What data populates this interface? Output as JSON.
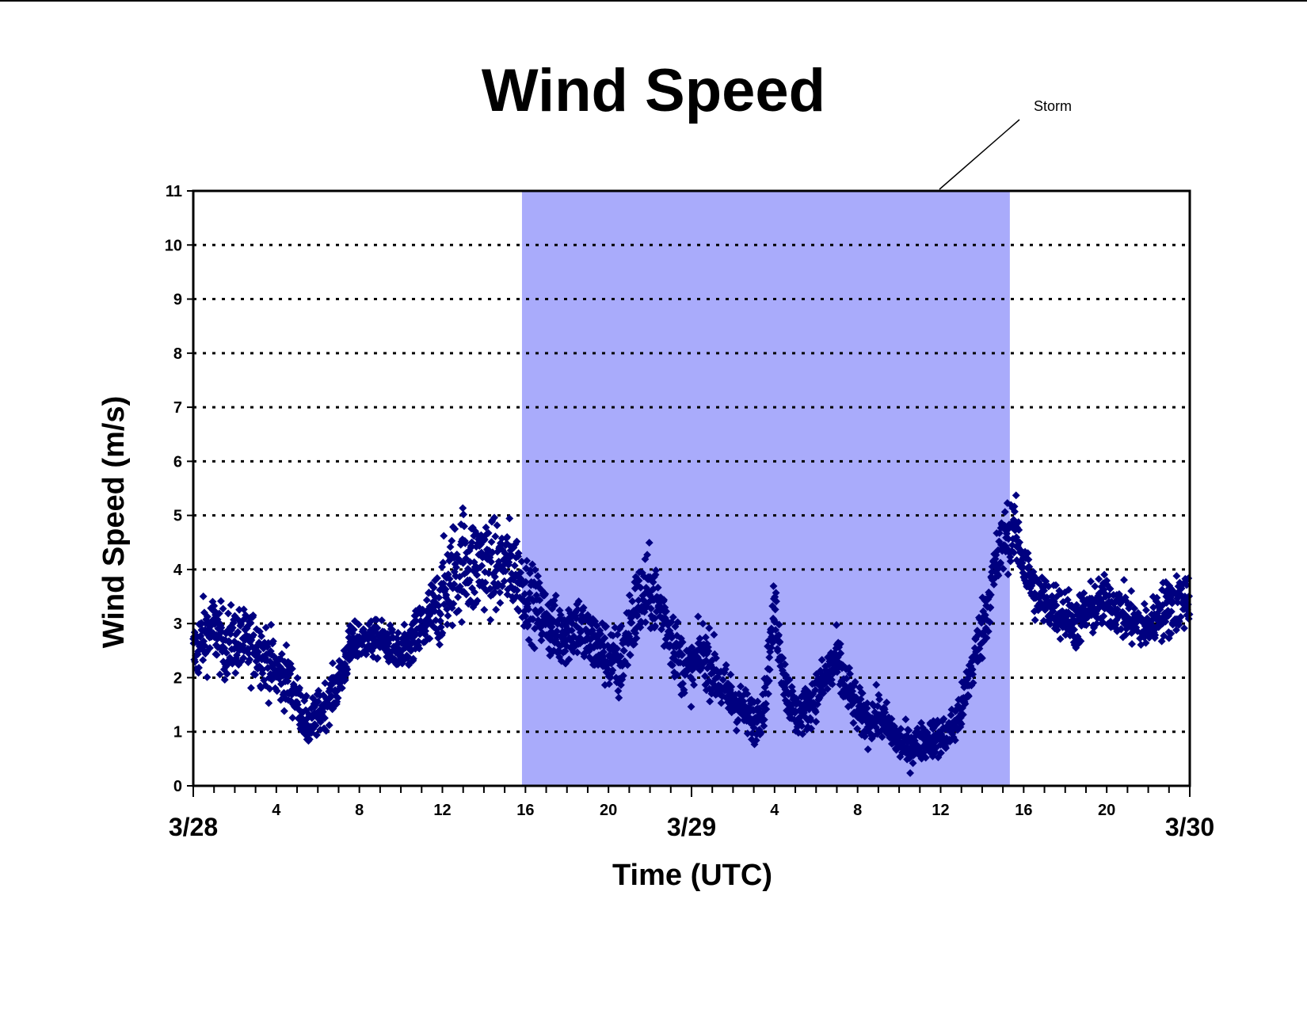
{
  "chart_data": {
    "type": "scatter",
    "title": "Wind Speed",
    "xlabel": "Time (UTC)",
    "ylabel": "Wind Speed (m/s)",
    "ylim": [
      0,
      11
    ],
    "xlim": [
      "3/28 00:00",
      "3/30 00:00"
    ],
    "y_ticks": [
      0,
      1,
      2,
      3,
      4,
      5,
      6,
      7,
      8,
      9,
      10,
      11
    ],
    "x_hour_ticks": [
      {
        "label": "4",
        "x": "3/28 04:00"
      },
      {
        "label": "8",
        "x": "3/28 08:00"
      },
      {
        "label": "12",
        "x": "3/28 12:00"
      },
      {
        "label": "16",
        "x": "3/28 16:00"
      },
      {
        "label": "20",
        "x": "3/28 20:00"
      },
      {
        "label": "4",
        "x": "3/29 04:00"
      },
      {
        "label": "8",
        "x": "3/29 08:00"
      },
      {
        "label": "12",
        "x": "3/29 12:00"
      },
      {
        "label": "16",
        "x": "3/29 16:00"
      },
      {
        "label": "20",
        "x": "3/29 20:00"
      }
    ],
    "x_date_labels": [
      {
        "label": "3/28",
        "x": "3/28 00:00"
      },
      {
        "label": "3/29",
        "x": "3/29 00:00"
      },
      {
        "label": "3/30",
        "x": "3/30 00:00"
      }
    ],
    "grid": "horizontal dotted",
    "marker_color": "#000080",
    "shaded_region": {
      "label": "Storm",
      "x_start": "3/28 15:50",
      "x_end": "3/29 15:20",
      "color": "#a9abfb"
    },
    "series": [
      {
        "x": [
          "3/28 00:00",
          "3/28 00:30",
          "3/28 01:00",
          "3/28 01:30",
          "3/28 02:00",
          "3/28 02:30",
          "3/28 03:00",
          "3/28 03:30",
          "3/28 04:00",
          "3/28 04:30",
          "3/28 05:00",
          "3/28 05:30",
          "3/28 06:00",
          "3/28 06:30",
          "3/28 07:00",
          "3/28 07:30",
          "3/28 08:00",
          "3/28 08:30",
          "3/28 09:00",
          "3/28 09:30",
          "3/28 10:00",
          "3/28 10:30",
          "3/28 11:00",
          "3/28 11:30",
          "3/28 12:00",
          "3/28 12:30",
          "3/28 13:00",
          "3/28 13:30",
          "3/28 14:00",
          "3/28 14:30",
          "3/28 15:00",
          "3/28 15:30",
          "3/28 16:00",
          "3/28 16:30",
          "3/28 17:00",
          "3/28 17:30",
          "3/28 18:00",
          "3/28 18:30",
          "3/28 19:00",
          "3/28 19:30",
          "3/28 20:00",
          "3/28 20:30",
          "3/28 21:00",
          "3/28 21:30",
          "3/28 22:00",
          "3/28 22:30",
          "3/28 23:00",
          "3/28 23:30",
          "3/29 00:00",
          "3/29 00:30",
          "3/29 01:00",
          "3/29 01:30",
          "3/29 02:00",
          "3/29 02:30",
          "3/29 03:00",
          "3/29 03:30",
          "3/29 04:00",
          "3/29 04:30",
          "3/29 05:00",
          "3/29 05:30",
          "3/29 06:00",
          "3/29 06:30",
          "3/29 07:00",
          "3/29 07:30",
          "3/29 08:00",
          "3/29 08:30",
          "3/29 09:00",
          "3/29 09:30",
          "3/29 10:00",
          "3/29 10:30",
          "3/29 11:00",
          "3/29 11:30",
          "3/29 12:00",
          "3/29 12:30",
          "3/29 13:00",
          "3/29 13:30",
          "3/29 14:00",
          "3/29 14:30",
          "3/29 15:00",
          "3/29 15:30",
          "3/29 16:00",
          "3/29 16:30",
          "3/29 17:00",
          "3/29 17:30",
          "3/29 18:00",
          "3/29 18:30",
          "3/29 19:00",
          "3/29 19:30",
          "3/29 20:00",
          "3/29 20:30",
          "3/29 21:00",
          "3/29 21:30",
          "3/29 22:00",
          "3/29 22:30",
          "3/29 23:00",
          "3/29 23:30",
          "3/30 00:00"
        ],
        "y": [
          2.4,
          2.8,
          2.9,
          2.6,
          2.7,
          2.6,
          2.6,
          2.4,
          2.1,
          2.0,
          1.6,
          1.1,
          1.3,
          1.6,
          1.9,
          2.5,
          2.7,
          2.7,
          2.7,
          2.6,
          2.4,
          2.6,
          2.9,
          3.1,
          3.5,
          3.9,
          4.2,
          4.0,
          4.2,
          4.0,
          4.1,
          4.0,
          3.6,
          3.3,
          3.1,
          2.8,
          2.9,
          3.0,
          2.7,
          2.6,
          2.4,
          2.2,
          2.9,
          3.4,
          3.6,
          3.3,
          2.8,
          2.3,
          2.1,
          2.5,
          2.2,
          1.8,
          1.6,
          1.4,
          1.2,
          1.5,
          3.3,
          1.9,
          1.3,
          1.4,
          1.7,
          2.0,
          2.3,
          1.8,
          1.4,
          1.2,
          1.3,
          1.1,
          0.8,
          0.7,
          0.8,
          0.9,
          0.9,
          1.0,
          1.4,
          2.2,
          2.9,
          3.8,
          4.5,
          4.8,
          4.1,
          3.6,
          3.4,
          3.3,
          3.2,
          3.0,
          3.2,
          3.3,
          3.4,
          3.3,
          3.1,
          3.0,
          2.9,
          3.2,
          3.3,
          3.4,
          3.5
        ],
        "spread": [
          0.45,
          0.45,
          0.45,
          0.45,
          0.45,
          0.45,
          0.45,
          0.45,
          0.4,
          0.4,
          0.3,
          0.3,
          0.3,
          0.3,
          0.3,
          0.3,
          0.25,
          0.25,
          0.25,
          0.25,
          0.3,
          0.3,
          0.45,
          0.5,
          0.6,
          0.7,
          0.7,
          0.7,
          0.65,
          0.6,
          0.6,
          0.55,
          0.5,
          0.45,
          0.45,
          0.45,
          0.45,
          0.45,
          0.45,
          0.4,
          0.45,
          0.5,
          0.55,
          0.55,
          0.5,
          0.45,
          0.45,
          0.4,
          0.35,
          0.4,
          0.4,
          0.35,
          0.35,
          0.3,
          0.3,
          0.3,
          0.4,
          0.35,
          0.3,
          0.3,
          0.3,
          0.35,
          0.4,
          0.35,
          0.3,
          0.3,
          0.3,
          0.25,
          0.25,
          0.25,
          0.25,
          0.25,
          0.25,
          0.3,
          0.3,
          0.35,
          0.4,
          0.45,
          0.45,
          0.4,
          0.4,
          0.35,
          0.35,
          0.35,
          0.35,
          0.35,
          0.35,
          0.35,
          0.35,
          0.35,
          0.35,
          0.3,
          0.3,
          0.35,
          0.4,
          0.4,
          0.4
        ]
      }
    ]
  }
}
